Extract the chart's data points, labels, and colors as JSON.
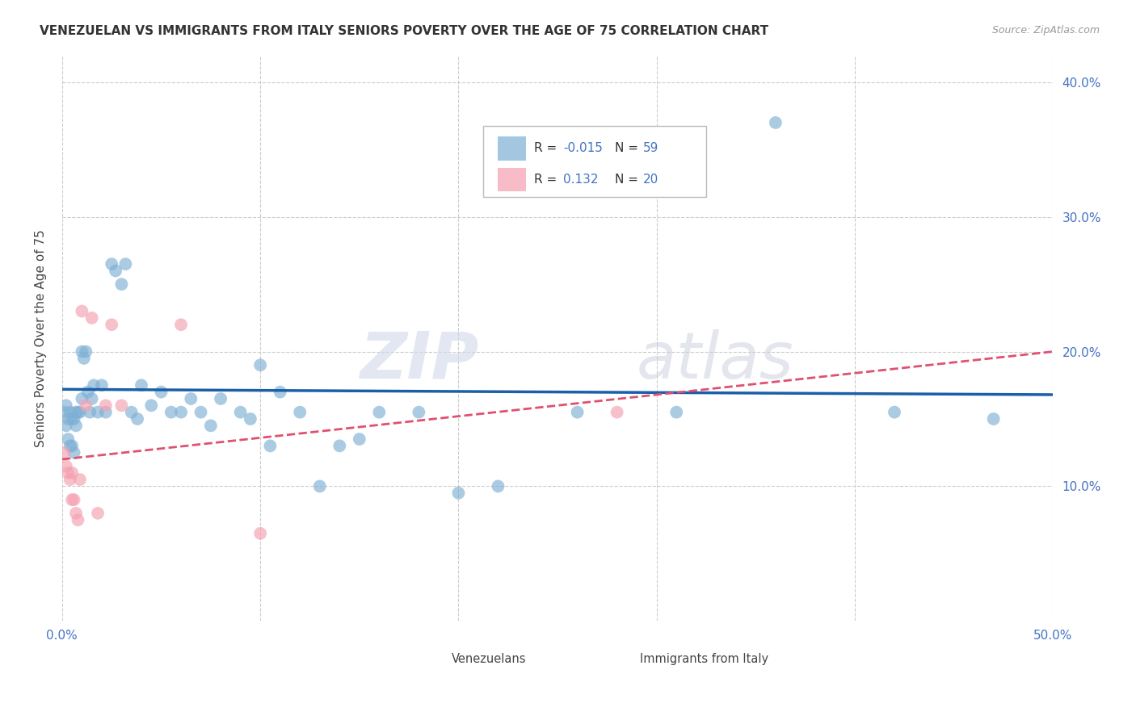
{
  "title": "VENEZUELAN VS IMMIGRANTS FROM ITALY SENIORS POVERTY OVER THE AGE OF 75 CORRELATION CHART",
  "source": "Source: ZipAtlas.com",
  "ylabel": "Seniors Poverty Over the Age of 75",
  "xlim": [
    0.0,
    0.5
  ],
  "ylim": [
    0.0,
    0.42
  ],
  "xticks": [
    0.0,
    0.1,
    0.2,
    0.3,
    0.4,
    0.5
  ],
  "yticks": [
    0.0,
    0.1,
    0.2,
    0.3,
    0.4
  ],
  "grid_color": "#cccccc",
  "background_color": "#ffffff",
  "venezuelan_color": "#7EB0D5",
  "italy_color": "#F4A0B0",
  "trend_venezuelan_color": "#1a5fa8",
  "trend_italy_color": "#e05070",
  "R_venezuelan": -0.015,
  "N_venezuelan": 59,
  "R_italy": 0.132,
  "N_italy": 20,
  "legend_label_venezuelan": "Venezuelans",
  "legend_label_italy": "Immigrants from Italy",
  "watermark_zip": "ZIP",
  "watermark_atlas": "atlas",
  "venezuelan_x": [
    0.001,
    0.002,
    0.002,
    0.003,
    0.003,
    0.004,
    0.004,
    0.005,
    0.005,
    0.006,
    0.006,
    0.007,
    0.007,
    0.008,
    0.009,
    0.01,
    0.01,
    0.011,
    0.012,
    0.013,
    0.014,
    0.015,
    0.016,
    0.018,
    0.02,
    0.022,
    0.025,
    0.027,
    0.03,
    0.032,
    0.035,
    0.038,
    0.04,
    0.045,
    0.05,
    0.055,
    0.06,
    0.065,
    0.07,
    0.075,
    0.08,
    0.09,
    0.095,
    0.1,
    0.105,
    0.11,
    0.12,
    0.13,
    0.14,
    0.15,
    0.16,
    0.18,
    0.2,
    0.22,
    0.26,
    0.31,
    0.36,
    0.42,
    0.47
  ],
  "venezuelan_y": [
    0.155,
    0.16,
    0.145,
    0.15,
    0.135,
    0.155,
    0.13,
    0.15,
    0.13,
    0.15,
    0.125,
    0.145,
    0.155,
    0.155,
    0.155,
    0.2,
    0.165,
    0.195,
    0.2,
    0.17,
    0.155,
    0.165,
    0.175,
    0.155,
    0.175,
    0.155,
    0.265,
    0.26,
    0.25,
    0.265,
    0.155,
    0.15,
    0.175,
    0.16,
    0.17,
    0.155,
    0.155,
    0.165,
    0.155,
    0.145,
    0.165,
    0.155,
    0.15,
    0.19,
    0.13,
    0.17,
    0.155,
    0.1,
    0.13,
    0.135,
    0.155,
    0.155,
    0.095,
    0.1,
    0.155,
    0.155,
    0.37,
    0.155,
    0.15
  ],
  "italy_x": [
    0.001,
    0.002,
    0.003,
    0.004,
    0.005,
    0.005,
    0.006,
    0.007,
    0.008,
    0.009,
    0.01,
    0.012,
    0.015,
    0.018,
    0.022,
    0.025,
    0.03,
    0.06,
    0.1,
    0.28
  ],
  "italy_y": [
    0.125,
    0.115,
    0.11,
    0.105,
    0.11,
    0.09,
    0.09,
    0.08,
    0.075,
    0.105,
    0.23,
    0.16,
    0.225,
    0.08,
    0.16,
    0.22,
    0.16,
    0.22,
    0.065,
    0.155
  ]
}
